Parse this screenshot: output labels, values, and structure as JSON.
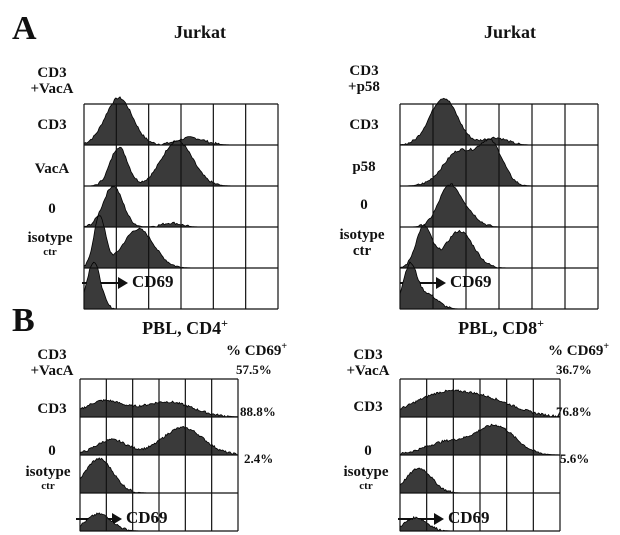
{
  "section_a": {
    "letter": "A",
    "x_axis_label": "CD69",
    "panels": [
      {
        "title": "Jurkat",
        "rows": [
          {
            "label_lines": [
              "CD3",
              "+VacA"
            ]
          },
          {
            "label_lines": [
              "CD3"
            ]
          },
          {
            "label_lines": [
              "VacA"
            ]
          },
          {
            "label_lines": [
              "0"
            ]
          },
          {
            "label_lines": [
              "isotype",
              "ctr"
            ]
          }
        ]
      },
      {
        "title": "Jurkat",
        "rows": [
          {
            "label_lines": [
              "CD3",
              "+p58"
            ]
          },
          {
            "label_lines": [
              "CD3"
            ]
          },
          {
            "label_lines": [
              "p58"
            ]
          },
          {
            "label_lines": [
              "0"
            ]
          },
          {
            "label_lines": [
              "isotype",
              "ctr"
            ]
          }
        ]
      }
    ]
  },
  "section_b": {
    "letter": "B",
    "x_axis_label": "CD69",
    "panels": [
      {
        "title": "PBL, CD4",
        "title_sup": "+",
        "pct_header": "% CD69",
        "pct_header_sup": "+",
        "rows": [
          {
            "label_lines": [
              "CD3",
              "+VacA"
            ],
            "percent": "57.5%"
          },
          {
            "label_lines": [
              "CD3"
            ],
            "percent": "88.8%"
          },
          {
            "label_lines": [
              "0"
            ],
            "percent": "2.4%"
          },
          {
            "label_lines": [
              "isotype",
              "ctr"
            ],
            "percent": ""
          }
        ]
      },
      {
        "title": "PBL, CD8",
        "title_sup": "+",
        "pct_header": "% CD69",
        "pct_header_sup": "+",
        "rows": [
          {
            "label_lines": [
              "CD3",
              "+VacA"
            ],
            "percent": "36.7%"
          },
          {
            "label_lines": [
              "CD3"
            ],
            "percent": "76.8%"
          },
          {
            "label_lines": [
              "0"
            ],
            "percent": "5.6%"
          },
          {
            "label_lines": [
              "isotype",
              "ctr"
            ],
            "percent": ""
          }
        ]
      }
    ]
  },
  "colors": {
    "histogram_fill": "#3a3a3a",
    "grid": "#111111"
  }
}
